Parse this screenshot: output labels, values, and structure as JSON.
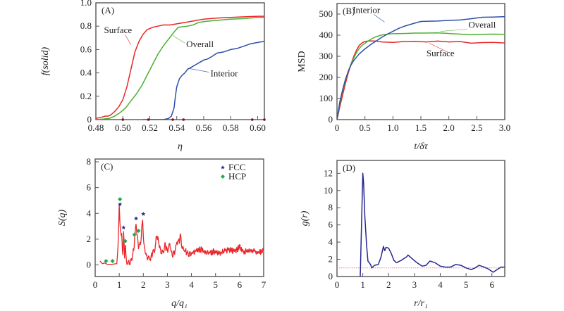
{
  "figure": {
    "colors": {
      "red": "#e8262a",
      "green": "#4cb030",
      "blue": "#2d4fa8",
      "navy": "#27288f",
      "hcp_green": "#1fa84f",
      "marker": "#7a1010",
      "ref_line": "#e88080"
    }
  },
  "chart_data": [
    {
      "id": "A",
      "type": "line",
      "panel_label": "(A)",
      "title": "",
      "xlabel": "η",
      "ylabel": "f(solid)",
      "ylabel_parts": [
        "f",
        "(solid)"
      ],
      "xlim": [
        0.48,
        0.605
      ],
      "ylim": [
        0,
        1.0
      ],
      "xticks": [
        0.48,
        0.5,
        0.52,
        0.54,
        0.56,
        0.58,
        0.6
      ],
      "xtick_labels": [
        "0.48",
        "0.50",
        "0.52",
        "0.54",
        "0.56",
        "0.58",
        "0.60"
      ],
      "yticks": [
        0,
        0.2,
        0.4,
        0.6,
        0.8,
        1.0
      ],
      "ytick_labels": [
        "0",
        "0.2",
        "0.4",
        "0.6",
        "0.8",
        "1.0"
      ],
      "grid": false,
      "axis_markers_x": [
        0.5,
        0.519,
        0.537,
        0.545,
        0.596,
        0.605
      ],
      "series": [
        {
          "name": "Surface",
          "color": "red",
          "x": [
            0.48,
            0.484,
            0.487,
            0.489,
            0.491,
            0.494,
            0.497,
            0.5,
            0.503,
            0.506,
            0.509,
            0.512,
            0.515,
            0.518,
            0.522,
            0.526,
            0.53,
            0.535,
            0.54,
            0.545,
            0.55,
            0.555,
            0.56,
            0.57,
            0.58,
            0.59,
            0.6,
            0.605
          ],
          "y": [
            0.01,
            0.02,
            0.03,
            0.03,
            0.04,
            0.07,
            0.11,
            0.17,
            0.28,
            0.43,
            0.58,
            0.67,
            0.73,
            0.77,
            0.79,
            0.8,
            0.81,
            0.81,
            0.82,
            0.83,
            0.84,
            0.85,
            0.86,
            0.87,
            0.875,
            0.88,
            0.885,
            0.885
          ]
        },
        {
          "name": "Overall",
          "color": "green",
          "x": [
            0.48,
            0.485,
            0.49,
            0.494,
            0.498,
            0.502,
            0.506,
            0.51,
            0.514,
            0.518,
            0.522,
            0.526,
            0.53,
            0.534,
            0.538,
            0.541,
            0.544,
            0.548,
            0.552,
            0.556,
            0.56,
            0.57,
            0.58,
            0.59,
            0.6,
            0.605
          ],
          "y": [
            0.0,
            0.005,
            0.01,
            0.03,
            0.06,
            0.1,
            0.16,
            0.22,
            0.29,
            0.38,
            0.47,
            0.56,
            0.63,
            0.69,
            0.75,
            0.79,
            0.795,
            0.8,
            0.81,
            0.83,
            0.84,
            0.85,
            0.86,
            0.865,
            0.875,
            0.875
          ]
        },
        {
          "name": "Interior",
          "color": "blue",
          "x": [
            0.515,
            0.52,
            0.525,
            0.53,
            0.534,
            0.536,
            0.538,
            0.539,
            0.54,
            0.542,
            0.544,
            0.546,
            0.548,
            0.551,
            0.554,
            0.557,
            0.56,
            0.563,
            0.566,
            0.57,
            0.575,
            0.58,
            0.585,
            0.59,
            0.595,
            0.6,
            0.605
          ],
          "y": [
            0.0,
            0.0,
            0.0,
            0.0,
            0.01,
            0.03,
            0.1,
            0.2,
            0.28,
            0.35,
            0.38,
            0.4,
            0.43,
            0.45,
            0.47,
            0.49,
            0.51,
            0.52,
            0.54,
            0.57,
            0.58,
            0.6,
            0.61,
            0.63,
            0.65,
            0.66,
            0.67
          ]
        }
      ],
      "annotations": [
        {
          "text": "Surface",
          "series": "Surface",
          "label_at": [
            0.486,
            0.74
          ],
          "point_at": [
            0.506,
            0.64
          ]
        },
        {
          "text": "Overall",
          "series": "Overall",
          "label_at": [
            0.547,
            0.62
          ],
          "point_at": [
            0.537,
            0.72
          ]
        },
        {
          "text": "Interior",
          "series": "Interior",
          "label_at": [
            0.565,
            0.37
          ],
          "point_at": [
            0.548,
            0.44
          ]
        }
      ]
    },
    {
      "id": "B",
      "type": "line",
      "panel_label": "(B)",
      "title": "",
      "xlabel": "t/δτ",
      "ylabel": "MSD",
      "xlim": [
        0,
        3.0
      ],
      "ylim": [
        0,
        550
      ],
      "xticks": [
        0,
        0.5,
        1.0,
        1.5,
        2.0,
        2.5,
        3.0
      ],
      "xtick_labels": [
        "0",
        "0.5",
        "1.0",
        "1.5",
        "2.0",
        "2.5",
        "3.0"
      ],
      "yticks": [
        0,
        100,
        200,
        300,
        400,
        500
      ],
      "ytick_labels": [
        "0",
        "100",
        "200",
        "300",
        "400",
        "500"
      ],
      "grid": false,
      "series": [
        {
          "name": "Surface",
          "color": "red",
          "x": [
            0,
            0.05,
            0.1,
            0.15,
            0.2,
            0.25,
            0.3,
            0.35,
            0.4,
            0.45,
            0.5,
            0.55,
            0.6,
            0.7,
            0.8,
            1.0,
            1.2,
            1.4,
            1.6,
            1.8,
            2.0,
            2.2,
            2.4,
            2.6,
            2.8,
            3.0
          ],
          "y": [
            0,
            60,
            115,
            170,
            220,
            262,
            300,
            330,
            352,
            364,
            370,
            372,
            373,
            372,
            368,
            366,
            370,
            371,
            368,
            372,
            368,
            370,
            362,
            365,
            366,
            363
          ]
        },
        {
          "name": "Overall",
          "color": "green",
          "x": [
            0,
            0.05,
            0.1,
            0.15,
            0.2,
            0.25,
            0.3,
            0.35,
            0.4,
            0.45,
            0.5,
            0.6,
            0.7,
            0.8,
            0.9,
            1.0,
            1.2,
            1.4,
            1.6,
            1.8,
            2.0,
            2.2,
            2.4,
            2.6,
            2.8,
            3.0
          ],
          "y": [
            0,
            75,
            135,
            185,
            228,
            262,
            292,
            318,
            338,
            352,
            362,
            380,
            393,
            401,
            405,
            407,
            408,
            410,
            410,
            411,
            408,
            405,
            402,
            404,
            405,
            404
          ]
        },
        {
          "name": "Interior",
          "color": "blue",
          "x": [
            0,
            0.05,
            0.1,
            0.15,
            0.2,
            0.25,
            0.3,
            0.4,
            0.5,
            0.6,
            0.7,
            0.8,
            0.9,
            1.0,
            1.1,
            1.2,
            1.3,
            1.4,
            1.5,
            1.6,
            1.8,
            2.0,
            2.2,
            2.4,
            2.6,
            2.8,
            3.0
          ],
          "y": [
            0,
            85,
            140,
            190,
            228,
            258,
            280,
            312,
            335,
            355,
            372,
            390,
            405,
            418,
            432,
            442,
            450,
            458,
            465,
            466,
            467,
            470,
            472,
            478,
            485,
            486,
            488
          ]
        }
      ],
      "annotations": [
        {
          "text": "Interior",
          "series": "Interior",
          "label_at": [
            0.28,
            505
          ],
          "point_at": [
            0.85,
            462
          ]
        },
        {
          "text": "Overall",
          "series": "Overall",
          "label_at": [
            2.35,
            435
          ],
          "point_at": [
            1.85,
            418
          ]
        },
        {
          "text": "Surface",
          "series": "Surface",
          "label_at": [
            1.6,
            300
          ],
          "point_at": [
            1.65,
            362
          ]
        }
      ]
    },
    {
      "id": "C",
      "type": "line",
      "panel_label": "(C)",
      "title": "",
      "xlabel": "q/q₁",
      "xlabel_parts": [
        "q",
        "/",
        "q",
        "1"
      ],
      "ylabel": "S(q)",
      "ylabel_parts": [
        "S",
        "(",
        "q",
        ")"
      ],
      "xlim": [
        0,
        7
      ],
      "ylim": [
        -0.9,
        8
      ],
      "xticks": [
        0,
        1,
        2,
        3,
        4,
        5,
        6,
        7
      ],
      "xtick_labels": [
        "0",
        "1",
        "2",
        "3",
        "4",
        "5",
        "6",
        "7"
      ],
      "yticks": [
        0,
        2,
        4,
        6,
        8
      ],
      "ytick_labels": [
        "0",
        "2",
        "4",
        "6",
        "8"
      ],
      "grid": false,
      "legend": {
        "position": "top-right",
        "entries": [
          {
            "label": "FCC",
            "marker": "star",
            "color": "navy"
          },
          {
            "label": "HCP",
            "marker": "diamond",
            "color": "hcp_green"
          }
        ]
      },
      "series": [
        {
          "name": "S(q)",
          "color": "red",
          "x": [
            0.2,
            0.3,
            0.4,
            0.5,
            0.7,
            0.9,
            0.95,
            1.0,
            1.03,
            1.06,
            1.1,
            1.15,
            1.18,
            1.22,
            1.26,
            1.3,
            1.4,
            1.5,
            1.6,
            1.66,
            1.7,
            1.75,
            1.8,
            1.9,
            1.97,
            2.0,
            2.05,
            2.15,
            2.3,
            2.4,
            2.5,
            2.55,
            2.6,
            2.7,
            2.8,
            2.9,
            3.0,
            3.1,
            3.2,
            3.3,
            3.4,
            3.5,
            3.55,
            3.6,
            3.7,
            3.8,
            3.9,
            4.0,
            4.2,
            4.4,
            4.6,
            4.8,
            5.0,
            5.2,
            5.4,
            5.6,
            5.8,
            6.0,
            6.2,
            6.4,
            6.6,
            6.8,
            7.0
          ],
          "y": [
            0.3,
            0.1,
            0.15,
            0.05,
            0.05,
            0.1,
            1.5,
            4.5,
            3.0,
            2.5,
            2.2,
            0.8,
            2.6,
            0.6,
            1.6,
            0.3,
            0.2,
            0.3,
            1.2,
            2.4,
            3.3,
            2.0,
            1.4,
            1.8,
            3.7,
            2.2,
            1.2,
            0.6,
            0.5,
            1.0,
            1.3,
            2.4,
            2.0,
            1.2,
            0.9,
            1.5,
            1.1,
            1.6,
            0.7,
            1.0,
            1.8,
            1.9,
            2.3,
            1.4,
            1.2,
            1.0,
            0.8,
            0.9,
            1.1,
            1.2,
            0.95,
            1.0,
            1.05,
            0.95,
            1.1,
            1.2,
            1.05,
            1.4,
            1.0,
            1.05,
            1.1,
            0.95,
            1.1
          ]
        }
      ],
      "markers": {
        "FCC": {
          "x": [
            1.03,
            1.18,
            1.7,
            2.0
          ],
          "y": [
            4.7,
            2.9,
            3.6,
            3.95
          ]
        },
        "HCP": {
          "x": [
            0.45,
            0.72,
            1.03,
            1.25,
            1.63,
            1.8
          ],
          "y": [
            0.3,
            0.3,
            5.1,
            1.85,
            2.35,
            2.65
          ]
        }
      }
    },
    {
      "id": "D",
      "type": "line",
      "panel_label": "(D)",
      "title": "",
      "xlabel": "r/r₁",
      "xlabel_parts": [
        "r",
        "/",
        "r",
        "1"
      ],
      "ylabel": "g(r)",
      "ylabel_parts": [
        "g",
        "(",
        "r",
        ")"
      ],
      "xlim": [
        0,
        6.5
      ],
      "ylim": [
        0,
        13.5
      ],
      "xticks": [
        0,
        1,
        2,
        3,
        4,
        5,
        6
      ],
      "xtick_labels": [
        "0",
        "1",
        "2",
        "3",
        "4",
        "5",
        "6"
      ],
      "yticks": [
        0,
        2,
        4,
        6,
        8,
        10,
        12
      ],
      "ytick_labels": [
        "0",
        "2",
        "4",
        "6",
        "8",
        "10",
        "12"
      ],
      "grid": false,
      "reference_line_y": 1.0,
      "series": [
        {
          "name": "g(r)",
          "color": "navy",
          "x": [
            0.9,
            0.95,
            1.0,
            1.03,
            1.08,
            1.15,
            1.2,
            1.3,
            1.35,
            1.45,
            1.6,
            1.7,
            1.8,
            1.85,
            1.9,
            2.0,
            2.1,
            2.2,
            2.3,
            2.5,
            2.7,
            2.75,
            2.9,
            3.1,
            3.3,
            3.45,
            3.6,
            3.8,
            4.0,
            4.2,
            4.4,
            4.6,
            4.8,
            5.0,
            5.2,
            5.35,
            5.5,
            5.7,
            5.85,
            6.05,
            6.2,
            6.35,
            6.5
          ],
          "y": [
            0,
            6.0,
            12.0,
            11.0,
            7.0,
            3.5,
            1.8,
            1.4,
            1.0,
            1.3,
            1.4,
            2.2,
            3.5,
            3.0,
            3.4,
            3.3,
            2.7,
            1.9,
            1.6,
            1.9,
            2.3,
            2.5,
            2.1,
            1.6,
            1.2,
            1.3,
            1.8,
            1.6,
            1.2,
            1.1,
            1.1,
            1.4,
            1.3,
            1.0,
            0.8,
            1.0,
            1.3,
            1.1,
            0.9,
            0.5,
            0.8,
            1.1,
            1.1
          ]
        }
      ]
    }
  ]
}
